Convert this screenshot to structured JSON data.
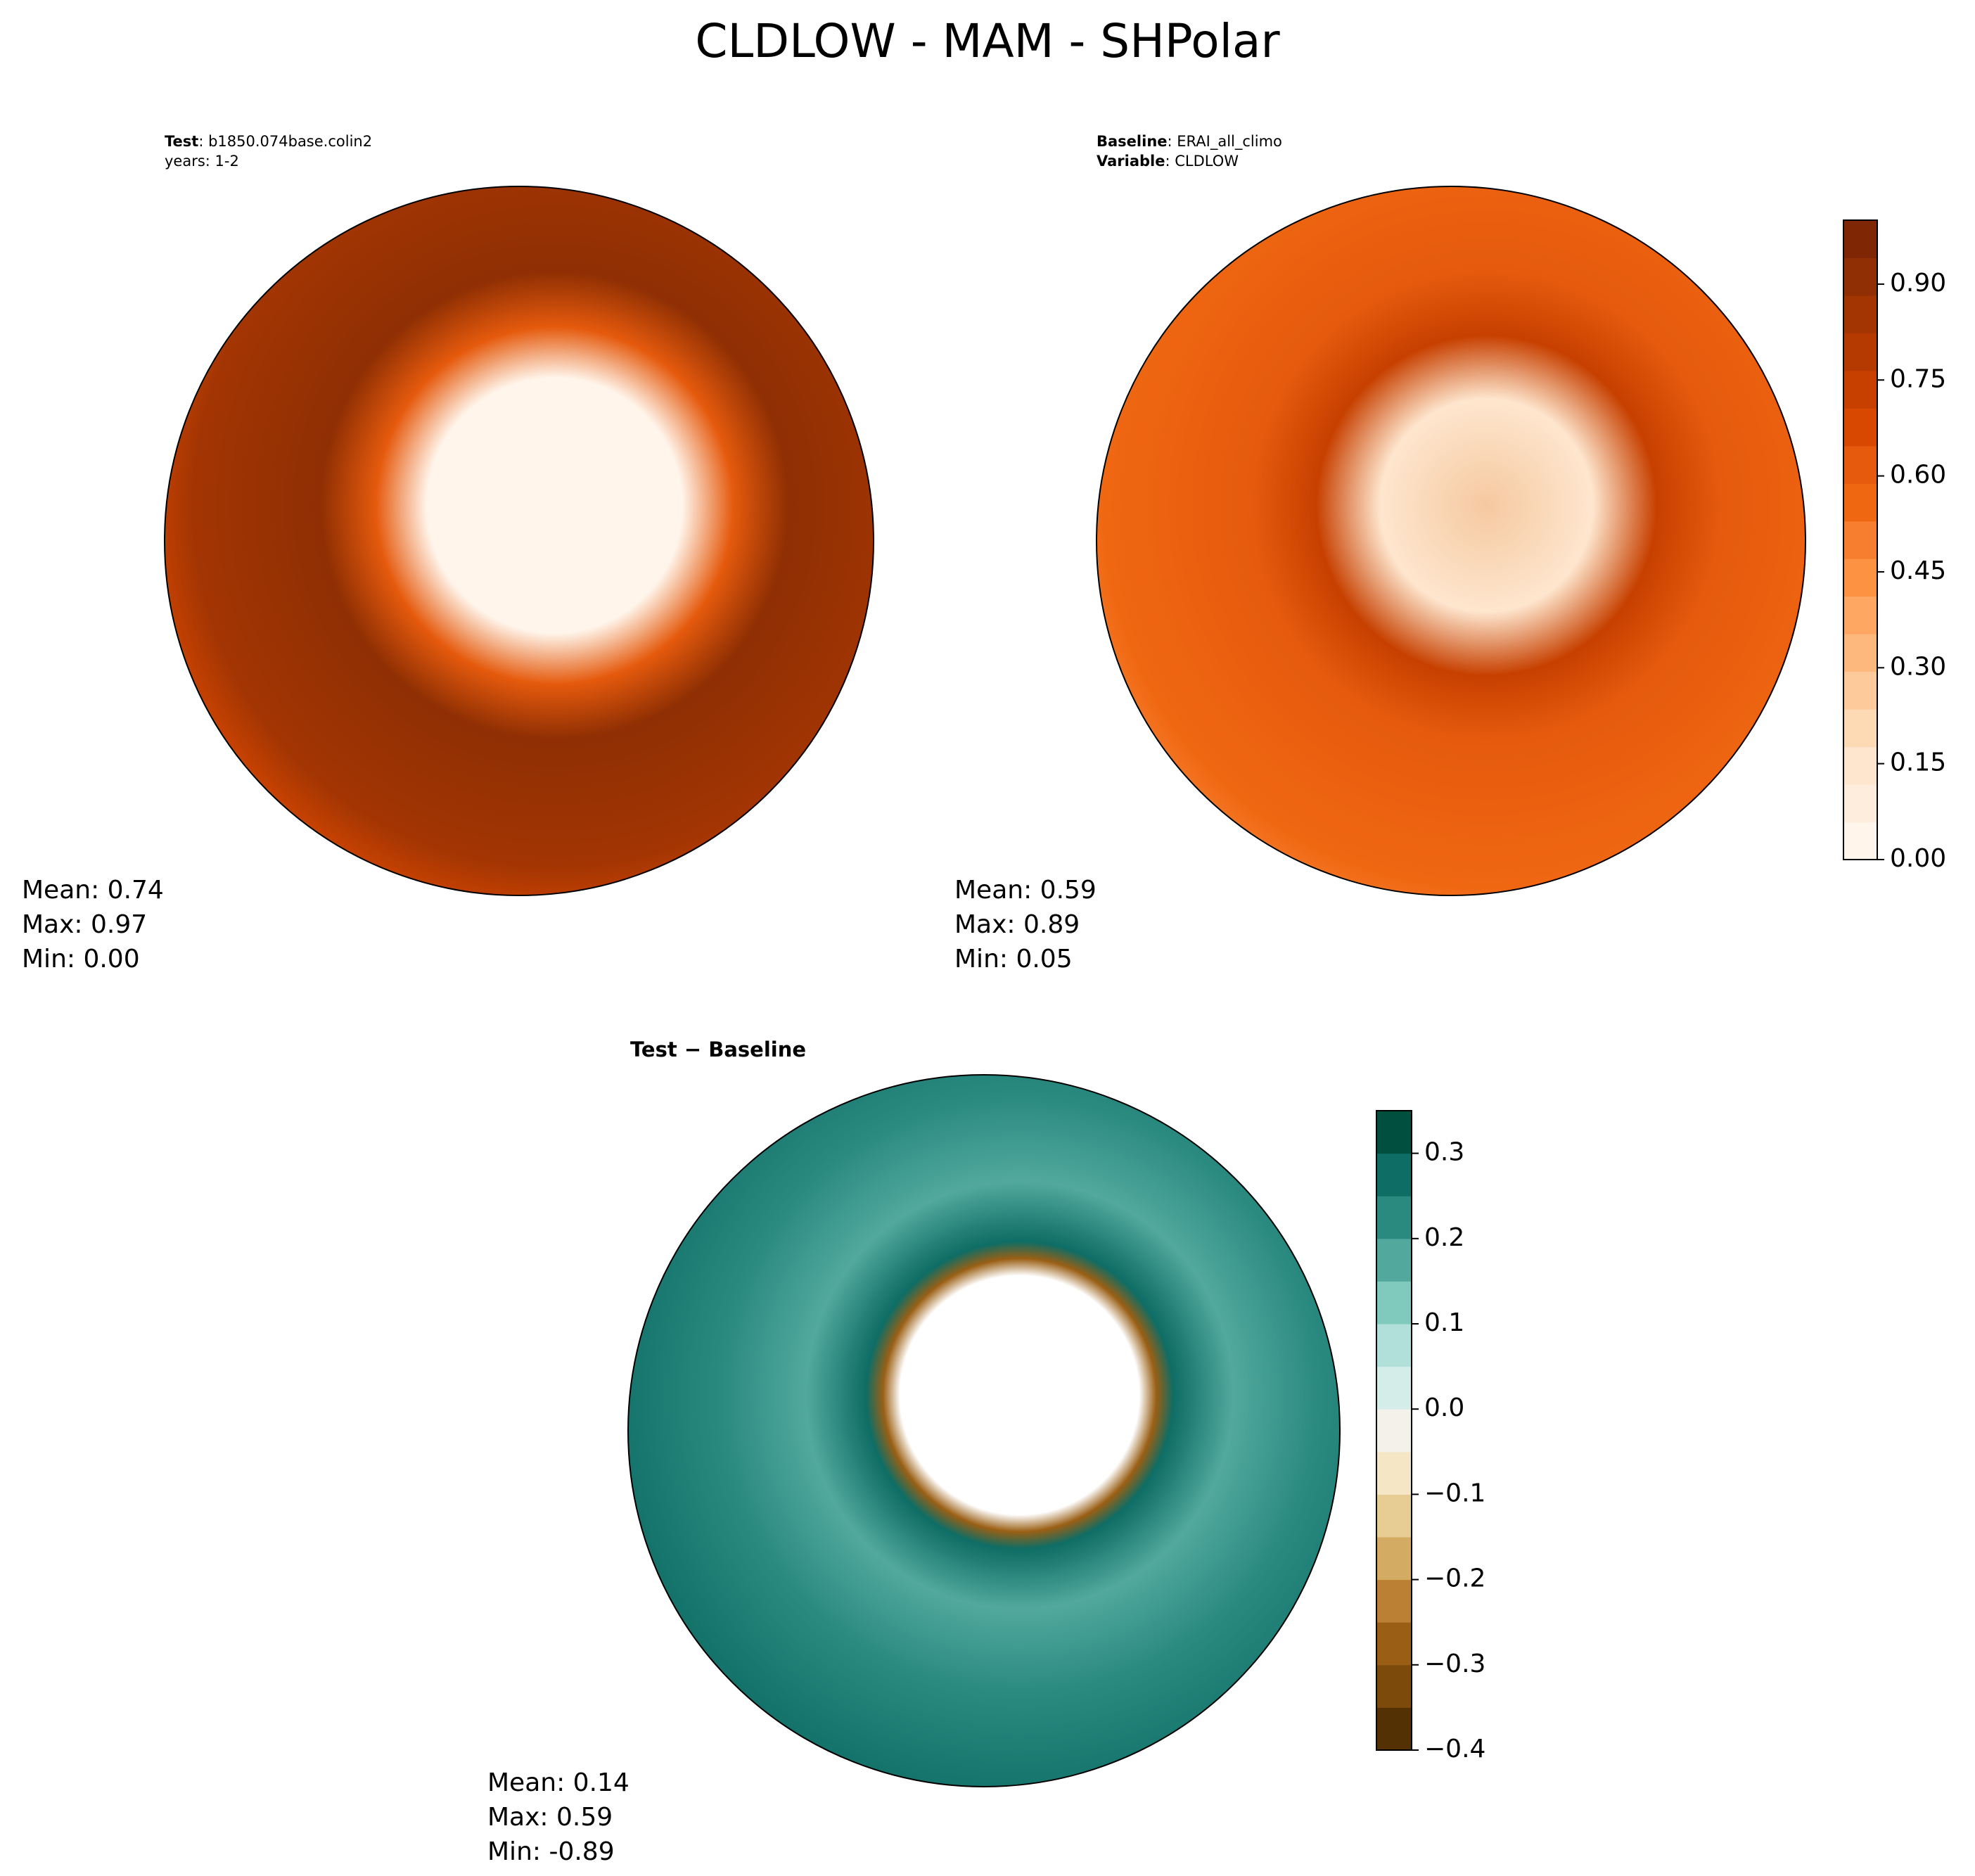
{
  "title": "CLDLOW - MAM - SHPolar",
  "panels": [
    {
      "header": [
        {
          "label": "Test",
          "text": ": b1850.074base.colin2"
        },
        {
          "text": "years: 1-2"
        }
      ],
      "stats": [
        "Mean:  0.74",
        "Max:  0.97",
        "Min:  0.00"
      ]
    },
    {
      "header": [
        {
          "label": "Baseline",
          "text": ": ERAI_all_climo"
        },
        {
          "label": "Variable",
          "text": ": CLDLOW"
        }
      ],
      "stats": [
        "Mean:  0.59",
        "Max:  0.89",
        "Min:  0.05"
      ]
    },
    {
      "header": [
        {
          "label": "Test − Baseline"
        }
      ],
      "stats": [
        "Mean:  0.14",
        "Max:  0.59",
        "Min: -0.89"
      ]
    }
  ],
  "colorbars": [
    {
      "ylim": [
        0,
        1
      ],
      "yticks": [
        {
          "value": 0,
          "label": "0.00"
        },
        {
          "value": 0.15,
          "label": "0.15"
        },
        {
          "value": 0.3,
          "label": "0.30"
        },
        {
          "value": 0.45,
          "label": "0.45"
        },
        {
          "value": 0.6,
          "label": "0.60"
        },
        {
          "value": 0.75,
          "label": "0.75"
        },
        {
          "value": 0.9,
          "label": "0.90"
        }
      ],
      "colors": [
        "#fff5eb",
        "#feeddc",
        "#fee6ce",
        "#fdd9b4",
        "#fdcb9b",
        "#fdb97d",
        "#fda762",
        "#fd9243",
        "#f67e2e",
        "#f06712",
        "#e55a0d",
        "#d94801",
        "#c74000",
        "#b43a02",
        "#a33503",
        "#8f2f03",
        "#7f2704"
      ]
    },
    {
      "ylim": [
        -0.4,
        0.35
      ],
      "yticks": [
        {
          "value": -0.4,
          "label": "−0.4"
        },
        {
          "value": -0.3,
          "label": "−0.3"
        },
        {
          "value": -0.2,
          "label": "−0.2"
        },
        {
          "value": -0.1,
          "label": "−0.1"
        },
        {
          "value": 0,
          "label": "0.0"
        },
        0.1,
        0.2,
        0.3
      ],
      "colors": [
        "#543005",
        "#7c4a0b",
        "#9a5f14",
        "#bb8034",
        "#d4ab62",
        "#e7cd93",
        "#f5e7c6",
        "#f3f1ea",
        "#d5ede9",
        "#b0e0d9",
        "#80c9bd",
        "#52a89c",
        "#2a8a80",
        "#0e6d65",
        "#01503f"
      ]
    }
  ]
}
